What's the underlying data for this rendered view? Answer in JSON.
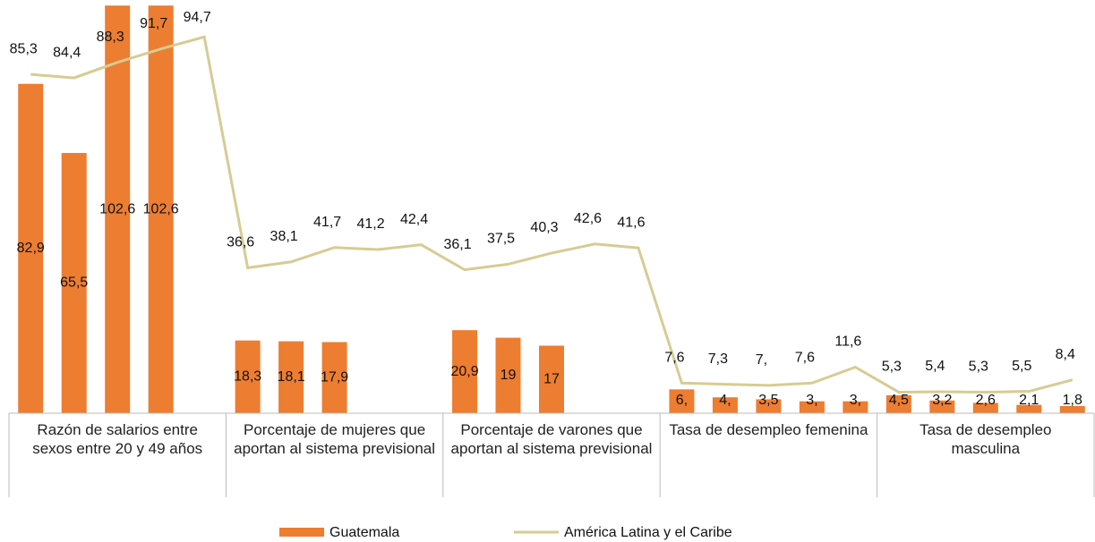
{
  "chart_data": {
    "type": "bar",
    "categories": [
      null,
      null,
      null,
      null,
      null,
      null,
      null,
      null,
      null,
      null,
      null,
      null,
      null,
      null,
      null,
      null,
      null,
      null,
      null,
      null,
      null,
      null,
      null,
      null,
      null
    ],
    "category_groups": [
      "Razón de salarios entre sexos entre 20 y 49 años",
      "Porcentaje de mujeres que aportan al sistema previsional",
      "Porcentaje de varones que aportan al sistema previsional",
      "Tasa de desempleo femenina",
      "Tasa de desempleo masculina"
    ],
    "ylim": [
      0,
      104
    ],
    "legend": "bottom",
    "series": [
      {
        "name": "Guatemala",
        "type": "bar",
        "color": "#ED7D31",
        "values": [
          82.9,
          65.5,
          102.6,
          102.6,
          null,
          18.3,
          18.1,
          17.9,
          null,
          null,
          20.9,
          19,
          17,
          null,
          null,
          6,
          4,
          3.5,
          3,
          3,
          4.5,
          3.2,
          2.6,
          2.1,
          1.8
        ],
        "value_labels": [
          "82,9",
          "65,5",
          "102,6",
          "102,6",
          null,
          "18,3",
          "18,1",
          "17,9",
          null,
          null,
          "20,9",
          "19",
          "17",
          null,
          null,
          "6,",
          "4,",
          "3,5",
          "3,",
          "3,",
          "4,5",
          "3,2",
          "2,6",
          "2,1",
          "1,8"
        ]
      },
      {
        "name": "América Latina y el Caribe",
        "type": "line",
        "color": "#D6CC93",
        "values": [
          85.3,
          84.4,
          88.3,
          91.7,
          94.7,
          36.6,
          38.1,
          41.7,
          41.2,
          42.4,
          36.1,
          37.5,
          40.3,
          42.6,
          41.6,
          7.6,
          7.3,
          7,
          7.6,
          11.6,
          5.3,
          5.4,
          5.3,
          5.5,
          8.4
        ],
        "value_labels": [
          "85,3",
          "84,4",
          "88,3",
          "91,7",
          "94,7",
          "36,6",
          "38,1",
          "41,7",
          "41,2",
          "42,4",
          "36,1",
          "37,5",
          "40,3",
          "42,6",
          "41,6",
          "7,6",
          "7,3",
          "7,",
          "7,6",
          "11,6",
          "5,3",
          "5,4",
          "5,3",
          "5,5",
          "8,4"
        ]
      }
    ]
  }
}
